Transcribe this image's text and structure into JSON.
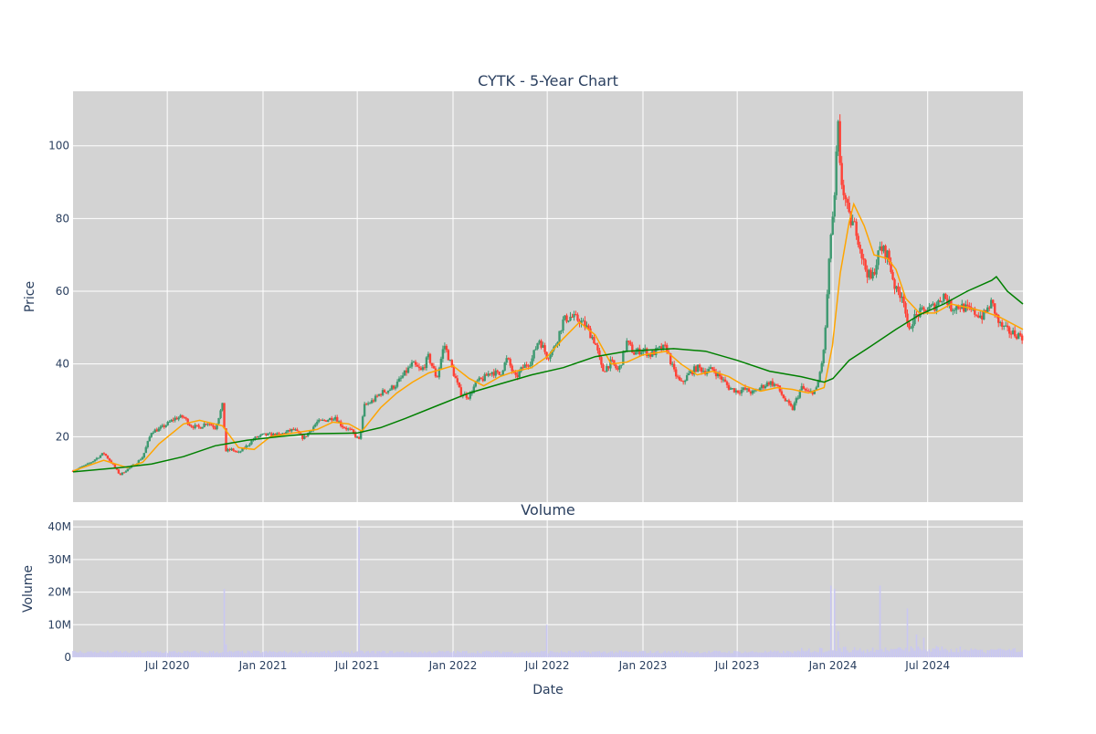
{
  "chart_data": [
    {
      "type": "candlestick",
      "title": "CYTK - 5-Year Chart",
      "ylabel": "Price",
      "ylim": [
        2,
        115
      ],
      "yticks": [
        20,
        40,
        60,
        80,
        100
      ],
      "grid": true,
      "background": "#d3d3d3",
      "x_range": [
        "2020-01-02",
        "2024-12-31"
      ],
      "ohlc_close": [
        [
          "2020-01-02",
          10.6
        ],
        [
          "2020-02-01",
          12.5
        ],
        [
          "2020-03-01",
          15.5
        ],
        [
          "2020-03-15",
          13.0
        ],
        [
          "2020-04-01",
          9.5
        ],
        [
          "2020-04-15",
          11.0
        ],
        [
          "2020-05-01",
          12.5
        ],
        [
          "2020-05-15",
          14.5
        ],
        [
          "2020-06-01",
          21.5
        ],
        [
          "2020-06-15",
          22.0
        ],
        [
          "2020-07-01",
          23.5
        ],
        [
          "2020-07-15",
          25.0
        ],
        [
          "2020-08-01",
          25.5
        ],
        [
          "2020-08-15",
          23.0
        ],
        [
          "2020-09-01",
          22.5
        ],
        [
          "2020-09-15",
          24.0
        ],
        [
          "2020-10-01",
          22.5
        ],
        [
          "2020-10-16",
          29.0
        ],
        [
          "2020-10-21",
          16.0
        ],
        [
          "2020-11-01",
          16.5
        ],
        [
          "2020-11-15",
          15.5
        ],
        [
          "2020-12-01",
          17.5
        ],
        [
          "2020-12-15",
          19.5
        ],
        [
          "2021-01-01",
          20.5
        ],
        [
          "2021-02-01",
          20.5
        ],
        [
          "2021-03-01",
          22.0
        ],
        [
          "2021-03-20",
          19.5
        ],
        [
          "2021-04-15",
          24.0
        ],
        [
          "2021-05-01",
          24.5
        ],
        [
          "2021-05-20",
          25.5
        ],
        [
          "2021-06-01",
          23.0
        ],
        [
          "2021-06-20",
          21.5
        ],
        [
          "2021-07-05",
          19.0
        ],
        [
          "2021-07-15",
          28.5
        ],
        [
          "2021-08-01",
          30.0
        ],
        [
          "2021-08-15",
          32.0
        ],
        [
          "2021-09-01",
          33.0
        ],
        [
          "2021-09-15",
          34.5
        ],
        [
          "2021-10-01",
          37.5
        ],
        [
          "2021-10-15",
          40.0
        ],
        [
          "2021-11-01",
          38.0
        ],
        [
          "2021-11-15",
          42.0
        ],
        [
          "2021-12-01",
          36.0
        ],
        [
          "2021-12-15",
          45.5
        ],
        [
          "2022-01-01",
          38.0
        ],
        [
          "2022-01-15",
          32.0
        ],
        [
          "2022-02-01",
          31.0
        ],
        [
          "2022-02-15",
          35.0
        ],
        [
          "2022-03-01",
          36.0
        ],
        [
          "2022-03-15",
          38.0
        ],
        [
          "2022-04-01",
          37.0
        ],
        [
          "2022-04-15",
          41.5
        ],
        [
          "2022-05-01",
          36.0
        ],
        [
          "2022-05-15",
          39.0
        ],
        [
          "2022-06-01",
          41.0
        ],
        [
          "2022-06-15",
          47.0
        ],
        [
          "2022-07-01",
          42.0
        ],
        [
          "2022-07-15",
          44.5
        ],
        [
          "2022-08-01",
          52.0
        ],
        [
          "2022-08-15",
          53.0
        ],
        [
          "2022-09-01",
          52.0
        ],
        [
          "2022-09-15",
          50.0
        ],
        [
          "2022-10-01",
          46.0
        ],
        [
          "2022-10-15",
          38.0
        ],
        [
          "2022-11-01",
          40.5
        ],
        [
          "2022-11-15",
          38.0
        ],
        [
          "2022-12-01",
          46.0
        ],
        [
          "2022-12-15",
          43.0
        ],
        [
          "2023-01-01",
          44.0
        ],
        [
          "2023-01-15",
          42.5
        ],
        [
          "2023-02-01",
          44.0
        ],
        [
          "2023-02-15",
          44.5
        ],
        [
          "2023-03-01",
          38.0
        ],
        [
          "2023-03-15",
          34.5
        ],
        [
          "2023-04-01",
          37.5
        ],
        [
          "2023-04-15",
          39.0
        ],
        [
          "2023-05-01",
          38.0
        ],
        [
          "2023-05-15",
          38.5
        ],
        [
          "2023-06-01",
          36.0
        ],
        [
          "2023-06-15",
          33.5
        ],
        [
          "2023-07-01",
          32.5
        ],
        [
          "2023-07-15",
          33.0
        ],
        [
          "2023-08-01",
          32.0
        ],
        [
          "2023-08-15",
          33.5
        ],
        [
          "2023-09-01",
          35.0
        ],
        [
          "2023-09-15",
          34.0
        ],
        [
          "2023-10-01",
          30.0
        ],
        [
          "2023-10-15",
          27.5
        ],
        [
          "2023-11-01",
          33.5
        ],
        [
          "2023-11-15",
          32.0
        ],
        [
          "2023-12-01",
          33.0
        ],
        [
          "2023-12-15",
          44.0
        ],
        [
          "2023-12-28",
          76.0
        ],
        [
          "2024-01-05",
          86.0
        ],
        [
          "2024-01-10",
          108.0
        ],
        [
          "2024-01-15",
          92.0
        ],
        [
          "2024-02-01",
          80.0
        ],
        [
          "2024-02-15",
          77.0
        ],
        [
          "2024-03-01",
          67.0
        ],
        [
          "2024-03-15",
          63.0
        ],
        [
          "2024-04-01",
          72.0
        ],
        [
          "2024-04-15",
          70.0
        ],
        [
          "2024-05-01",
          60.0
        ],
        [
          "2024-05-15",
          59.0
        ],
        [
          "2024-05-25",
          48.0
        ],
        [
          "2024-06-01",
          52.0
        ],
        [
          "2024-06-15",
          54.0
        ],
        [
          "2024-07-01",
          55.0
        ],
        [
          "2024-07-15",
          56.0
        ],
        [
          "2024-08-01",
          59.0
        ],
        [
          "2024-08-15",
          55.5
        ],
        [
          "2024-09-01",
          56.0
        ],
        [
          "2024-09-15",
          55.0
        ],
        [
          "2024-10-01",
          54.0
        ],
        [
          "2024-10-15",
          53.0
        ],
        [
          "2024-11-01",
          57.0
        ],
        [
          "2024-11-15",
          51.0
        ],
        [
          "2024-12-01",
          49.0
        ],
        [
          "2024-12-31",
          47.5
        ]
      ],
      "series": [
        {
          "color": "#ffa500",
          "points": [
            [
              "2020-01-02",
              10.6
            ],
            [
              "2020-03-01",
              13.5
            ],
            [
              "2020-04-15",
              11.5
            ],
            [
              "2020-05-15",
              13.0
            ],
            [
              "2020-06-15",
              18.0
            ],
            [
              "2020-08-01",
              23.5
            ],
            [
              "2020-09-01",
              24.5
            ],
            [
              "2020-10-15",
              23.0
            ],
            [
              "2020-11-15",
              17.0
            ],
            [
              "2020-12-15",
              16.5
            ],
            [
              "2021-01-15",
              20.0
            ],
            [
              "2021-03-01",
              21.0
            ],
            [
              "2021-04-15",
              22.0
            ],
            [
              "2021-05-15",
              24.0
            ],
            [
              "2021-06-15",
              23.5
            ],
            [
              "2021-07-10",
              21.5
            ],
            [
              "2021-08-15",
              28.0
            ],
            [
              "2021-09-15",
              32.0
            ],
            [
              "2021-10-15",
              35.0
            ],
            [
              "2021-11-15",
              37.5
            ],
            [
              "2022-01-01",
              39.5
            ],
            [
              "2022-02-01",
              36.0
            ],
            [
              "2022-03-01",
              34.0
            ],
            [
              "2022-04-01",
              36.5
            ],
            [
              "2022-05-01",
              38.0
            ],
            [
              "2022-06-01",
              39.0
            ],
            [
              "2022-07-01",
              42.0
            ],
            [
              "2022-08-01",
              47.0
            ],
            [
              "2022-09-01",
              51.5
            ],
            [
              "2022-10-01",
              48.0
            ],
            [
              "2022-11-01",
              40.0
            ],
            [
              "2022-12-01",
              40.5
            ],
            [
              "2023-01-01",
              42.5
            ],
            [
              "2023-02-15",
              43.5
            ],
            [
              "2023-03-15",
              40.0
            ],
            [
              "2023-04-15",
              37.0
            ],
            [
              "2023-05-15",
              38.0
            ],
            [
              "2023-06-15",
              36.5
            ],
            [
              "2023-07-15",
              34.0
            ],
            [
              "2023-08-15",
              32.5
            ],
            [
              "2023-09-15",
              33.5
            ],
            [
              "2023-10-15",
              33.0
            ],
            [
              "2023-11-15",
              32.0
            ],
            [
              "2023-12-15",
              33.5
            ],
            [
              "2023-12-31",
              45.0
            ],
            [
              "2024-01-15",
              65.0
            ],
            [
              "2024-02-01",
              79.0
            ],
            [
              "2024-02-10",
              84.0
            ],
            [
              "2024-03-01",
              78.0
            ],
            [
              "2024-03-20",
              70.0
            ],
            [
              "2024-04-15",
              69.0
            ],
            [
              "2024-05-01",
              66.0
            ],
            [
              "2024-05-20",
              58.0
            ],
            [
              "2024-06-15",
              54.0
            ],
            [
              "2024-07-15",
              54.0
            ],
            [
              "2024-08-15",
              56.5
            ],
            [
              "2024-09-15",
              55.5
            ],
            [
              "2024-10-15",
              54.5
            ],
            [
              "2024-11-15",
              53.0
            ],
            [
              "2024-12-31",
              49.5
            ]
          ]
        },
        {
          "color": "#008000",
          "points": [
            [
              "2020-01-02",
              10.3
            ],
            [
              "2020-04-01",
              11.5
            ],
            [
              "2020-06-01",
              12.5
            ],
            [
              "2020-08-01",
              14.5
            ],
            [
              "2020-10-01",
              17.5
            ],
            [
              "2020-12-01",
              19.0
            ],
            [
              "2021-02-01",
              20.0
            ],
            [
              "2021-04-01",
              20.8
            ],
            [
              "2021-07-01",
              21.0
            ],
            [
              "2021-08-15",
              22.5
            ],
            [
              "2021-10-01",
              25.0
            ],
            [
              "2021-12-01",
              28.5
            ],
            [
              "2022-02-01",
              32.0
            ],
            [
              "2022-04-01",
              34.5
            ],
            [
              "2022-06-01",
              37.0
            ],
            [
              "2022-08-01",
              39.0
            ],
            [
              "2022-10-01",
              42.0
            ],
            [
              "2022-12-01",
              43.5
            ],
            [
              "2023-03-01",
              44.2
            ],
            [
              "2023-05-01",
              43.5
            ],
            [
              "2023-07-01",
              41.0
            ],
            [
              "2023-09-01",
              38.0
            ],
            [
              "2023-11-01",
              36.5
            ],
            [
              "2023-12-15",
              35.0
            ],
            [
              "2024-01-01",
              36.0
            ],
            [
              "2024-02-01",
              41.0
            ],
            [
              "2024-03-15",
              45.0
            ],
            [
              "2024-05-01",
              49.5
            ],
            [
              "2024-06-15",
              53.5
            ],
            [
              "2024-08-01",
              56.5
            ],
            [
              "2024-09-15",
              60.0
            ],
            [
              "2024-11-01",
              63.0
            ],
            [
              "2024-11-10",
              64.0
            ],
            [
              "2024-12-01",
              60.0
            ],
            [
              "2024-12-31",
              56.5
            ]
          ]
        }
      ],
      "increasing_color": "#3d9970",
      "decreasing_color": "#ff4136"
    },
    {
      "type": "bar",
      "title": "Volume",
      "xlabel": "Date",
      "ylabel": "Volume",
      "ylim": [
        0,
        42000000
      ],
      "yticks": [
        0,
        10000000,
        20000000,
        30000000,
        40000000
      ],
      "ytick_labels": [
        "0",
        "10M",
        "20M",
        "30M",
        "40M"
      ],
      "xtick_labels": [
        [
          "2020-07-01",
          "Jul 2020"
        ],
        [
          "2021-01-01",
          "Jan 2021"
        ],
        [
          "2021-07-01",
          "Jul 2021"
        ],
        [
          "2022-01-01",
          "Jan 2022"
        ],
        [
          "2022-07-01",
          "Jul 2022"
        ],
        [
          "2023-01-01",
          "Jan 2023"
        ],
        [
          "2023-07-01",
          "Jul 2023"
        ],
        [
          "2024-01-01",
          "Jan 2024"
        ],
        [
          "2024-07-01",
          "Jul 2024"
        ]
      ],
      "grid": true,
      "background": "#d3d3d3",
      "bar_color": "#c9c7f2",
      "spikes": [
        [
          "2020-10-19",
          21000000
        ],
        [
          "2020-10-22",
          4000000
        ],
        [
          "2021-07-06",
          40000000
        ],
        [
          "2022-06-30",
          10000000
        ],
        [
          "2023-12-28",
          22000000
        ],
        [
          "2024-01-03",
          21000000
        ],
        [
          "2024-01-10",
          8000000
        ],
        [
          "2024-04-01",
          22000000
        ],
        [
          "2024-05-24",
          15000000
        ],
        [
          "2024-06-10",
          7000000
        ],
        [
          "2024-06-25",
          6000000
        ]
      ]
    }
  ]
}
